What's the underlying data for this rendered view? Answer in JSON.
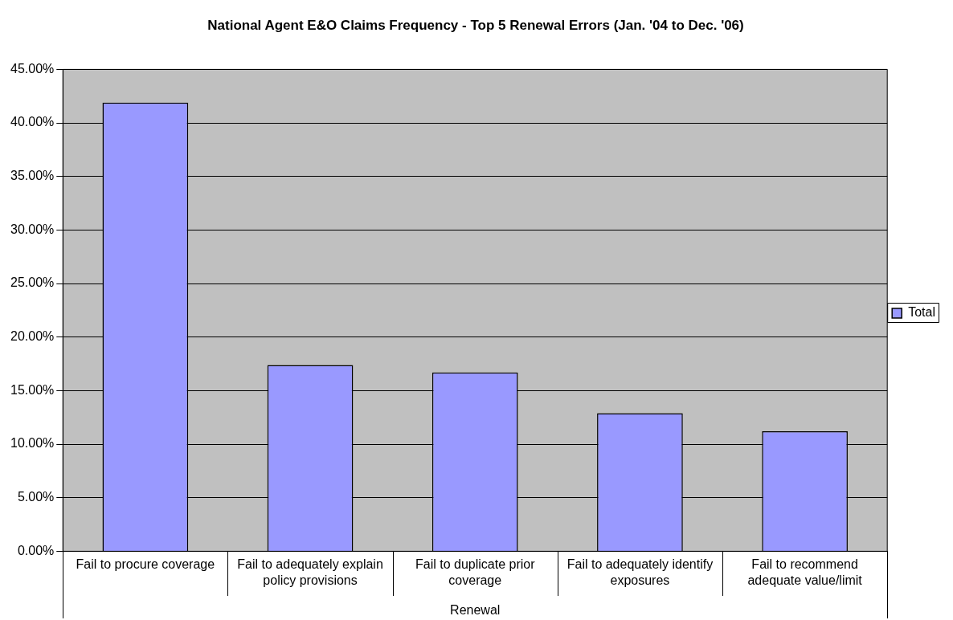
{
  "chart_data": {
    "type": "bar",
    "title": "National Agent E&O Claims Frequency - Top 5 Renewal Errors (Jan. '04 to Dec. '06)",
    "categories": [
      "Fail to procure coverage",
      "Fail to adequately explain policy provisions",
      "Fail to duplicate prior coverage",
      "Fail to adequately identify exposures",
      "Fail to recommend adequate value/limit"
    ],
    "xlabel": "Renewal",
    "series": [
      {
        "name": "Total",
        "color": "#9999ff",
        "values": [
          41.9,
          17.4,
          16.7,
          12.9,
          11.2
        ]
      }
    ],
    "ylim": [
      0,
      45
    ],
    "yticks": [
      {
        "value": 0,
        "label": "0.00%"
      },
      {
        "value": 5,
        "label": "5.00%"
      },
      {
        "value": 10,
        "label": "10.00%"
      },
      {
        "value": 15,
        "label": "15.00%"
      },
      {
        "value": 20,
        "label": "20.00%"
      },
      {
        "value": 25,
        "label": "25.00%"
      },
      {
        "value": 30,
        "label": "30.00%"
      },
      {
        "value": 35,
        "label": "35.00%"
      },
      {
        "value": 40,
        "label": "40.00%"
      },
      {
        "value": 45,
        "label": "45.00%"
      }
    ],
    "grid": "y",
    "legend": "right"
  }
}
